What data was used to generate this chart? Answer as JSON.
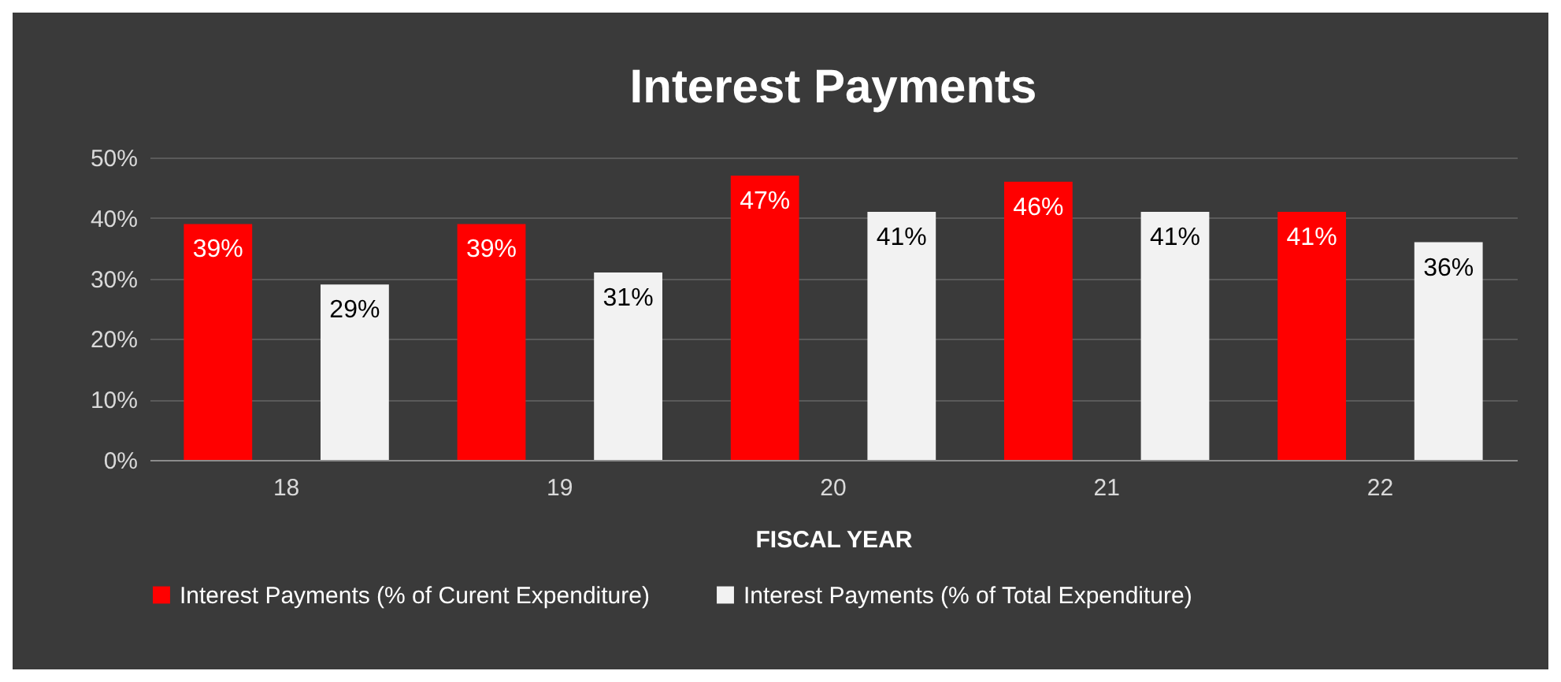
{
  "chart_data": {
    "type": "bar",
    "title": "Interest Payments",
    "xlabel": "FISCAL YEAR",
    "categories": [
      "18",
      "19",
      "20",
      "21",
      "22"
    ],
    "series": [
      {
        "name": "Interest Payments (% of Curent Expenditure)",
        "color": "#ff0000",
        "values": [
          39,
          39,
          47,
          46,
          41
        ]
      },
      {
        "name": "Interest Payments (% of Total Expenditure)",
        "color": "#f2f2f2",
        "values": [
          29,
          31,
          41,
          41,
          36
        ]
      }
    ],
    "ylim": [
      0,
      50
    ],
    "yticks": [
      {
        "value": 0,
        "label": "0%"
      },
      {
        "value": 10,
        "label": "10%"
      },
      {
        "value": 20,
        "label": "20%"
      },
      {
        "value": 30,
        "label": "30%"
      },
      {
        "value": 40,
        "label": "40%"
      },
      {
        "value": 50,
        "label": "50%"
      }
    ],
    "value_labels": [
      [
        "39%",
        "39%",
        "47%",
        "46%",
        "41%"
      ],
      [
        "29%",
        "31%",
        "41%",
        "41%",
        "36%"
      ]
    ],
    "grid": "y",
    "legend": "bottom"
  }
}
